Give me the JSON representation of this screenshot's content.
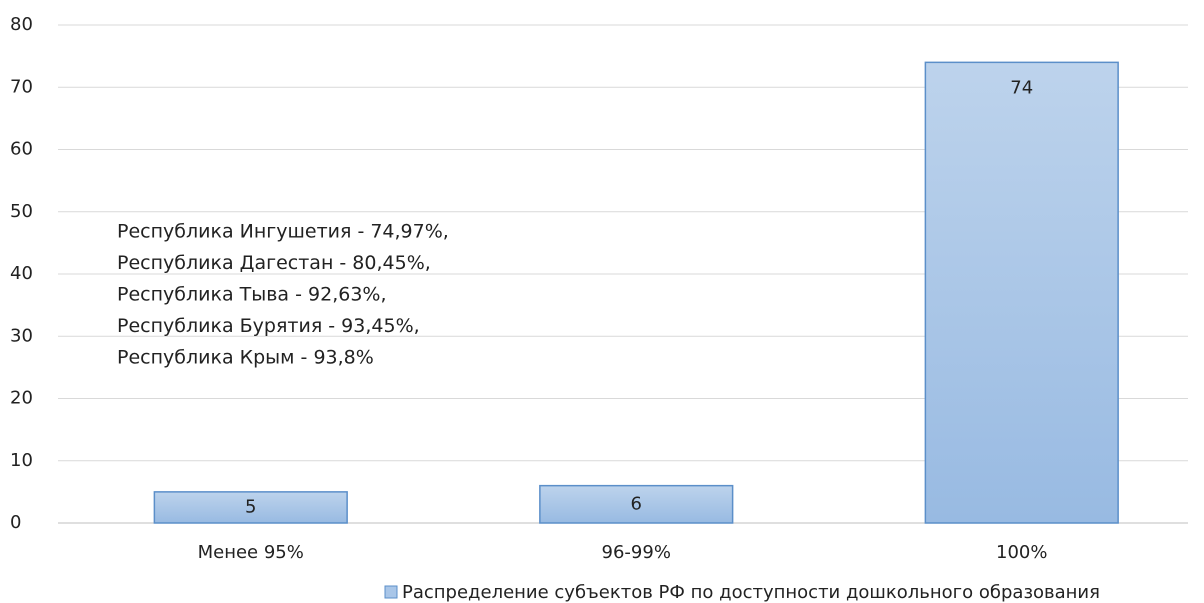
{
  "chart_data": {
    "type": "bar",
    "categories": [
      "Менее 95%",
      "96-99%",
      "100%"
    ],
    "series": [
      {
        "name": "Распределение субъектов РФ по доступности дошкольного образования",
        "color": "#a9c6e8",
        "values": [
          5,
          6,
          74
        ]
      }
    ],
    "ylim": [
      0,
      80
    ],
    "yticks": [
      0,
      10,
      20,
      30,
      40,
      50,
      60,
      70,
      80
    ],
    "grid": true,
    "legend": "bottom",
    "annotation": [
      "Республика Ингушетия - 74,97%,",
      "Республика Дагестан - 80,45%,",
      "Республика Тыва - 92,63%,",
      "Республика Бурятия - 93,45%,",
      "Республика Крым - 93,8%"
    ]
  }
}
